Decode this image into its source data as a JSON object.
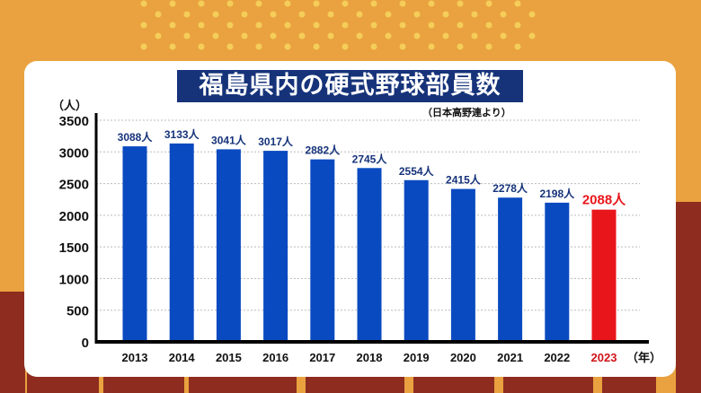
{
  "chart_data": {
    "type": "bar",
    "title": "福島県内の硬式野球部員数",
    "subtitle": "（日本高野連より）",
    "ylabel": "（人）",
    "xlabel": "（年）",
    "categories": [
      "2013",
      "2014",
      "2015",
      "2016",
      "2017",
      "2018",
      "2019",
      "2020",
      "2021",
      "2022",
      "2023"
    ],
    "values": [
      3088,
      3133,
      3041,
      3017,
      2882,
      2745,
      2554,
      2415,
      2278,
      2198,
      2088
    ],
    "data_labels": [
      "3088人",
      "3133人",
      "3041人",
      "3017人",
      "2882人",
      "2745人",
      "2554人",
      "2415人",
      "2278人",
      "2198人",
      "2088人"
    ],
    "ylim": [
      0,
      3500
    ],
    "yticks": [
      0,
      500,
      1000,
      1500,
      2000,
      2500,
      3000,
      3500
    ],
    "grid": true,
    "colors": {
      "bar": "#0A4AC0",
      "highlight": "#E8151A",
      "title_bg": "#16337A"
    },
    "highlight_category": "2023"
  }
}
